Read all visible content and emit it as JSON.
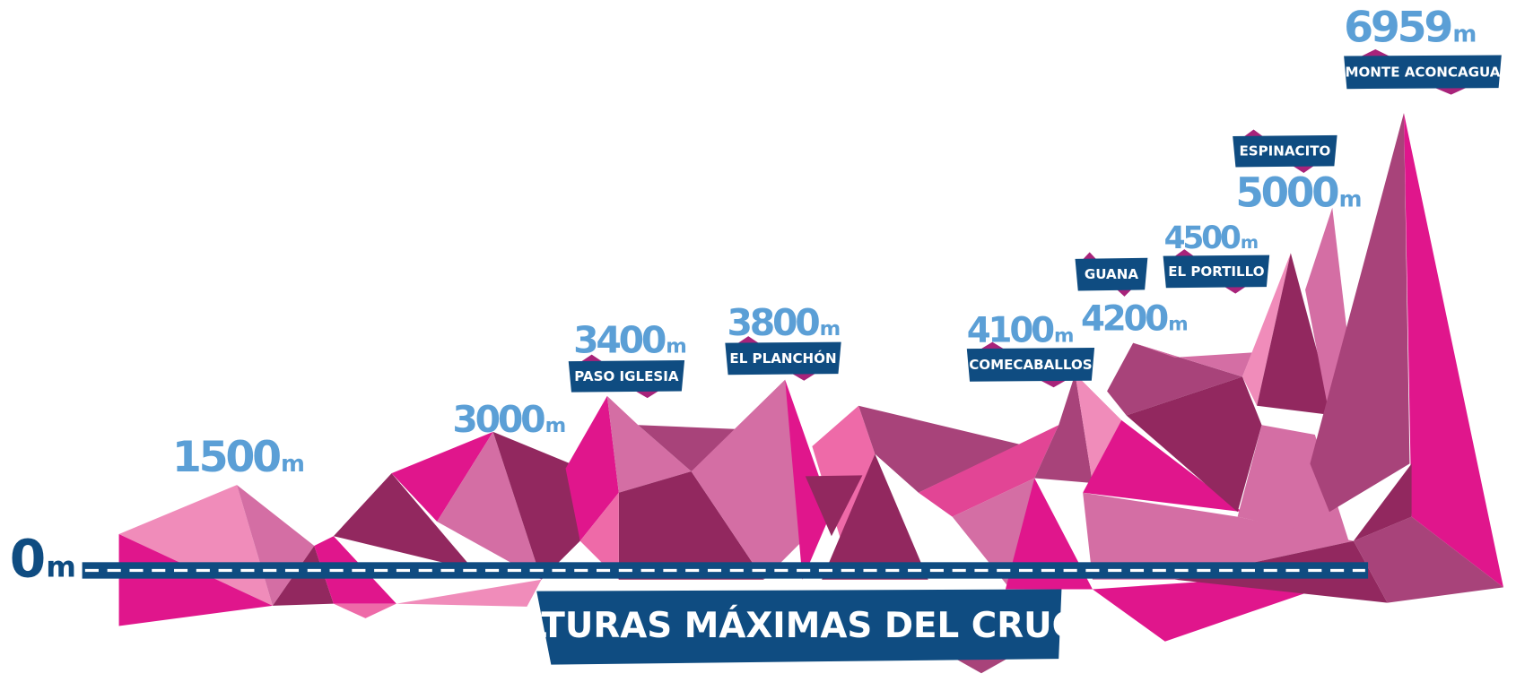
{
  "title": "ALTURAS MÁXIMAS DEL CRUCE",
  "unit": "m",
  "base": {
    "elevation": 0
  },
  "peaks": [
    {
      "elevation": 1500
    },
    {
      "elevation": 3000
    },
    {
      "elevation": 3400,
      "name": "PASO IGLESIA"
    },
    {
      "elevation": 3800,
      "name": "EL PLANCHÓN"
    },
    {
      "elevation": 4100,
      "name": "COMECABALLOS"
    },
    {
      "elevation": 4200,
      "name": "GUANA"
    },
    {
      "elevation": 4500,
      "name": "EL PORTILLO"
    },
    {
      "elevation": 5000,
      "name": "ESPINACITO"
    },
    {
      "elevation": 6959,
      "name": "MONTE ACONCAGUA"
    }
  ]
}
